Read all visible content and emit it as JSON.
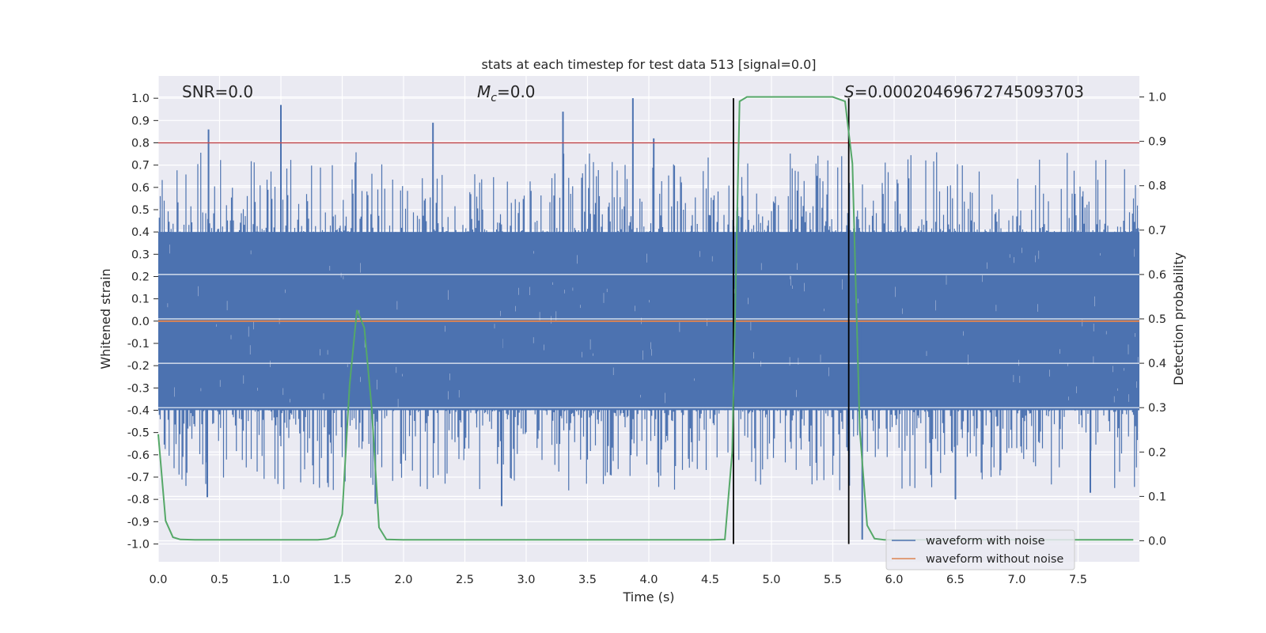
{
  "chart_data": {
    "type": "line",
    "title": "stats at each timestep for test data 513 [signal=0.0]",
    "xlabel": "Time (s)",
    "ylabel": "Whitened strain",
    "y2label": "Detection probability",
    "xlim": [
      0,
      8
    ],
    "ylim": [
      -1.08,
      1.1
    ],
    "y2lim": [
      -0.0473,
      1.0473
    ],
    "xticks": [
      "0.0",
      "0.5",
      "1.0",
      "1.5",
      "2.0",
      "2.5",
      "3.0",
      "3.5",
      "4.0",
      "4.5",
      "5.0",
      "5.5",
      "6.0",
      "6.5",
      "7.0",
      "7.5"
    ],
    "yticks": [
      "1.0",
      "0.9",
      "0.8",
      "0.7",
      "0.6",
      "0.5",
      "0.4",
      "0.3",
      "0.2",
      "0.1",
      "0.0",
      "-0.1",
      "-0.2",
      "-0.3",
      "-0.4",
      "-0.5",
      "-0.6",
      "-0.7",
      "-0.8",
      "-0.9",
      "-1.0"
    ],
    "y2ticks": [
      "1.0",
      "0.9",
      "0.8",
      "0.7",
      "0.6",
      "0.5",
      "0.4",
      "0.3",
      "0.2",
      "0.1",
      "0.0"
    ],
    "grid": true,
    "legend_position": "bottom-right",
    "annotations": {
      "snr": "SNR=0.0",
      "mc_symbol": "M",
      "mc_sub": "c",
      "mc_value": "=0.0",
      "s_symbol": "S",
      "s_value": "=0.00020469672745093703"
    },
    "threshold_line": {
      "y": 0.8,
      "color": "#c44e52"
    },
    "vertical_lines": [
      4.69,
      5.63
    ],
    "series": [
      {
        "name": "waveform with noise",
        "color": "#4c72b0",
        "kind": "noise",
        "envelope": 0.4,
        "spikes": [
          {
            "x": 0.41,
            "y": 0.86
          },
          {
            "x": 1.0,
            "y": 0.97
          },
          {
            "x": 2.24,
            "y": 0.89
          },
          {
            "x": 3.3,
            "y": 0.94
          },
          {
            "x": 3.87,
            "y": 1.0
          },
          {
            "x": 4.04,
            "y": 0.82
          },
          {
            "x": 0.4,
            "y": -0.79
          },
          {
            "x": 1.77,
            "y": -0.82
          },
          {
            "x": 2.8,
            "y": -0.83
          },
          {
            "x": 5.74,
            "y": -0.98
          },
          {
            "x": 6.5,
            "y": -0.8
          },
          {
            "x": 7.6,
            "y": -0.77
          }
        ]
      },
      {
        "name": "waveform without noise",
        "color": "#dd8452",
        "x": [
          0.0,
          8.0
        ],
        "y": [
          0.0,
          0.0
        ]
      },
      {
        "name": "detection probability",
        "color": "#55a868",
        "axis": "right",
        "x": [
          0.0,
          0.06,
          0.12,
          0.18,
          0.3,
          0.6,
          1.0,
          1.3,
          1.38,
          1.44,
          1.5,
          1.56,
          1.62,
          1.68,
          1.74,
          1.8,
          1.86,
          2.0,
          3.0,
          4.0,
          4.5,
          4.62,
          4.68,
          4.74,
          4.8,
          5.0,
          5.5,
          5.6,
          5.66,
          5.72,
          5.78,
          5.84,
          5.92,
          6.2,
          7.0,
          7.95
        ],
        "y": [
          0.24,
          0.045,
          0.008,
          0.003,
          0.002,
          0.002,
          0.002,
          0.002,
          0.004,
          0.01,
          0.06,
          0.35,
          0.52,
          0.48,
          0.3,
          0.03,
          0.003,
          0.002,
          0.002,
          0.002,
          0.002,
          0.003,
          0.2,
          0.99,
          1.0,
          1.0,
          1.0,
          0.99,
          0.85,
          0.25,
          0.035,
          0.005,
          0.002,
          0.002,
          0.002,
          0.002
        ]
      }
    ]
  }
}
